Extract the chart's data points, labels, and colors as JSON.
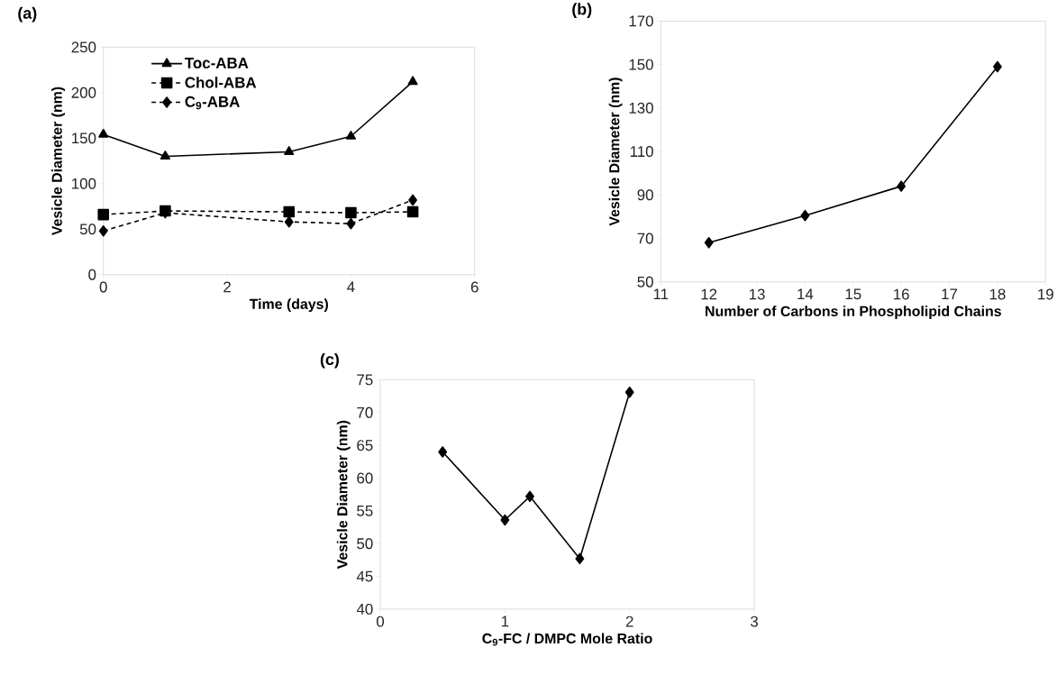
{
  "chart_data": [
    {
      "type": "line",
      "title": "(a)",
      "xlabel": "Time (days)",
      "ylabel": "Vesicle Diameter (nm)",
      "xlim": [
        0,
        6
      ],
      "xticks": [
        0,
        2,
        4,
        6
      ],
      "ylim": [
        0,
        250
      ],
      "yticks": [
        0,
        50,
        100,
        150,
        200,
        250
      ],
      "grid": false,
      "legend": "top left",
      "series": [
        {
          "name": "Toc-ABA",
          "color": "#000000",
          "marker": "triangle",
          "line_style": "solid",
          "x": [
            0,
            1,
            3,
            4,
            5
          ],
          "values": [
            154,
            130,
            135,
            152,
            212
          ]
        },
        {
          "name": "Chol-ABA",
          "color": "#000000",
          "marker": "square",
          "line_style": "dashed",
          "x": [
            0,
            1,
            3,
            4,
            5
          ],
          "values": [
            66,
            70,
            69,
            68,
            69
          ]
        },
        {
          "name": "C$_{9}$-ABA",
          "color": "#000000",
          "marker": "diamond",
          "line_style": "dashed",
          "x": [
            0,
            1,
            3,
            4,
            5
          ],
          "values": [
            48,
            68,
            58,
            56,
            82
          ]
        }
      ]
    },
    {
      "type": "line",
      "title": "(b)",
      "xlabel": "Number of Carbons in Phospholipid Chains",
      "ylabel": "Vesicle Diameter (nm)",
      "xlim": [
        11,
        19
      ],
      "xticks": [
        11,
        12,
        13,
        14,
        15,
        16,
        17,
        18,
        19
      ],
      "ylim": [
        50,
        170
      ],
      "yticks": [
        50,
        70,
        90,
        110,
        130,
        150,
        170
      ],
      "grid": false,
      "legend": false,
      "series": [
        {
          "color": "#000000",
          "marker": "diamond",
          "line_style": "solid",
          "x": [
            12,
            14,
            16,
            18
          ],
          "values": [
            68,
            80.5,
            94,
            149
          ]
        }
      ]
    },
    {
      "type": "line",
      "title": "(c)",
      "xlabel": "C$_{9}$-FC / DMPC Mole Ratio",
      "ylabel": "Vesicle Diameter (nm)",
      "xlim": [
        0,
        3
      ],
      "xticks": [
        0,
        1,
        2,
        3
      ],
      "ylim": [
        40,
        75
      ],
      "yticks": [
        40,
        45,
        50,
        55,
        60,
        65,
        70,
        75
      ],
      "grid": false,
      "legend": false,
      "series": [
        {
          "color": "#000000",
          "marker": "diamond",
          "line_style": "solid",
          "x": [
            0.5,
            1,
            1.2,
            1.6,
            2
          ],
          "values": [
            64,
            53.6,
            57.2,
            47.7,
            73.1
          ]
        }
      ]
    }
  ]
}
